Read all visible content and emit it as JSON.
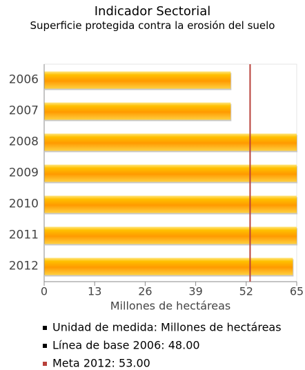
{
  "chart_data": {
    "type": "hbar",
    "title": "Indicador Sectorial",
    "subtitle": "Superficie protegida contra la erosión del suelo",
    "xlabel": "Millones de hectáreas",
    "categories": [
      "2006",
      "2007",
      "2008",
      "2009",
      "2010",
      "2011",
      "2012"
    ],
    "values": [
      48,
      48,
      65,
      65,
      65,
      65,
      64
    ],
    "color": "#ffb000",
    "target": 53,
    "target_color": "#b8403a",
    "xlim": [
      0,
      65
    ],
    "xticks": [
      0,
      13,
      26,
      39,
      52,
      65
    ],
    "legend": [
      {
        "text": "Unidad de medida: Millones de hectáreas",
        "color": "#000000"
      },
      {
        "text": "Línea de base 2006: 48.00",
        "color": "#000000"
      },
      {
        "text": "Meta 2012: 53.00",
        "color": "#b8403a"
      }
    ]
  }
}
